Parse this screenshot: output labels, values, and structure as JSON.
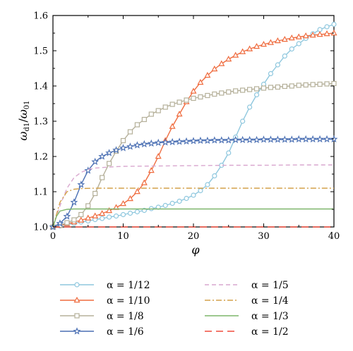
{
  "chart_data": {
    "type": "line",
    "xlabel": "φ",
    "ylabel_main": "ω",
    "ylabel_num_sub": "d1",
    "ylabel_den_sub": "01",
    "xlim": [
      0,
      40
    ],
    "ylim": [
      1.0,
      1.6
    ],
    "x_ticks": [
      "0",
      "10",
      "20",
      "30",
      "40"
    ],
    "y_ticks": [
      "1.0",
      "1.1",
      "1.2",
      "1.3",
      "1.4",
      "1.5",
      "1.6"
    ],
    "grid": false,
    "legend_position": "bottom",
    "series": [
      {
        "name": "α = 1/12",
        "color": "#8ec7de",
        "marker": "circle",
        "dash": "solid",
        "points": [
          [
            0,
            1.0
          ],
          [
            1,
            1.003
          ],
          [
            2,
            1.007
          ],
          [
            3,
            1.01
          ],
          [
            4,
            1.014
          ],
          [
            5,
            1.017
          ],
          [
            6,
            1.021
          ],
          [
            7,
            1.024
          ],
          [
            8,
            1.028
          ],
          [
            9,
            1.031
          ],
          [
            10,
            1.035
          ],
          [
            11,
            1.039
          ],
          [
            12,
            1.043
          ],
          [
            13,
            1.047
          ],
          [
            14,
            1.052
          ],
          [
            15,
            1.056
          ],
          [
            16,
            1.061
          ],
          [
            17,
            1.067
          ],
          [
            18,
            1.073
          ],
          [
            19,
            1.081
          ],
          [
            20,
            1.09
          ],
          [
            21,
            1.103
          ],
          [
            22,
            1.12
          ],
          [
            23,
            1.145
          ],
          [
            24,
            1.175
          ],
          [
            25,
            1.21
          ],
          [
            26,
            1.255
          ],
          [
            27,
            1.3
          ],
          [
            28,
            1.34
          ],
          [
            29,
            1.375
          ],
          [
            30,
            1.405
          ],
          [
            31,
            1.435
          ],
          [
            32,
            1.46
          ],
          [
            33,
            1.485
          ],
          [
            34,
            1.505
          ],
          [
            35,
            1.52
          ],
          [
            36,
            1.535
          ],
          [
            37,
            1.548
          ],
          [
            38,
            1.56
          ],
          [
            39,
            1.568
          ],
          [
            40,
            1.575
          ]
        ]
      },
      {
        "name": "α = 1/10",
        "color": "#ef6c3f",
        "marker": "triangle",
        "dash": "solid",
        "points": [
          [
            0,
            1.0
          ],
          [
            1,
            1.004
          ],
          [
            2,
            1.009
          ],
          [
            3,
            1.014
          ],
          [
            4,
            1.019
          ],
          [
            5,
            1.025
          ],
          [
            6,
            1.031
          ],
          [
            7,
            1.038
          ],
          [
            8,
            1.046
          ],
          [
            9,
            1.055
          ],
          [
            10,
            1.066
          ],
          [
            11,
            1.08
          ],
          [
            12,
            1.1
          ],
          [
            13,
            1.125
          ],
          [
            14,
            1.16
          ],
          [
            15,
            1.2
          ],
          [
            16,
            1.245
          ],
          [
            17,
            1.285
          ],
          [
            18,
            1.32
          ],
          [
            19,
            1.355
          ],
          [
            20,
            1.385
          ],
          [
            21,
            1.41
          ],
          [
            22,
            1.43
          ],
          [
            23,
            1.448
          ],
          [
            24,
            1.463
          ],
          [
            25,
            1.476
          ],
          [
            26,
            1.487
          ],
          [
            27,
            1.497
          ],
          [
            28,
            1.505
          ],
          [
            29,
            1.512
          ],
          [
            30,
            1.518
          ],
          [
            31,
            1.523
          ],
          [
            32,
            1.528
          ],
          [
            33,
            1.532
          ],
          [
            34,
            1.536
          ],
          [
            35,
            1.539
          ],
          [
            36,
            1.542
          ],
          [
            37,
            1.544
          ],
          [
            38,
            1.546
          ],
          [
            39,
            1.548
          ],
          [
            40,
            1.55
          ]
        ]
      },
      {
        "name": "α = 1/8",
        "color": "#b5b09a",
        "marker": "square",
        "dash": "solid",
        "points": [
          [
            0,
            1.0
          ],
          [
            1,
            1.005
          ],
          [
            2,
            1.012
          ],
          [
            3,
            1.02
          ],
          [
            4,
            1.035
          ],
          [
            5,
            1.06
          ],
          [
            6,
            1.095
          ],
          [
            7,
            1.14
          ],
          [
            8,
            1.18
          ],
          [
            9,
            1.215
          ],
          [
            10,
            1.245
          ],
          [
            11,
            1.27
          ],
          [
            12,
            1.29
          ],
          [
            13,
            1.305
          ],
          [
            14,
            1.32
          ],
          [
            15,
            1.33
          ],
          [
            16,
            1.34
          ],
          [
            17,
            1.348
          ],
          [
            18,
            1.354
          ],
          [
            19,
            1.36
          ],
          [
            20,
            1.365
          ],
          [
            21,
            1.369
          ],
          [
            22,
            1.373
          ],
          [
            23,
            1.377
          ],
          [
            24,
            1.38
          ],
          [
            25,
            1.383
          ],
          [
            26,
            1.386
          ],
          [
            27,
            1.388
          ],
          [
            28,
            1.39
          ],
          [
            29,
            1.392
          ],
          [
            30,
            1.394
          ],
          [
            31,
            1.396
          ],
          [
            32,
            1.397
          ],
          [
            33,
            1.399
          ],
          [
            34,
            1.4
          ],
          [
            35,
            1.402
          ],
          [
            36,
            1.403
          ],
          [
            37,
            1.404
          ],
          [
            38,
            1.405
          ],
          [
            39,
            1.406
          ],
          [
            40,
            1.407
          ]
        ]
      },
      {
        "name": "α = 1/6",
        "color": "#4a6fb3",
        "marker": "star",
        "dash": "solid",
        "points": [
          [
            0,
            1.0
          ],
          [
            1,
            1.01
          ],
          [
            2,
            1.03
          ],
          [
            3,
            1.07
          ],
          [
            4,
            1.12
          ],
          [
            5,
            1.16
          ],
          [
            6,
            1.185
          ],
          [
            7,
            1.2
          ],
          [
            8,
            1.21
          ],
          [
            9,
            1.218
          ],
          [
            10,
            1.224
          ],
          [
            11,
            1.228
          ],
          [
            12,
            1.232
          ],
          [
            13,
            1.235
          ],
          [
            14,
            1.237
          ],
          [
            15,
            1.239
          ],
          [
            16,
            1.24
          ],
          [
            17,
            1.241
          ],
          [
            18,
            1.242
          ],
          [
            19,
            1.243
          ],
          [
            20,
            1.244
          ],
          [
            21,
            1.245
          ],
          [
            22,
            1.245
          ],
          [
            23,
            1.246
          ],
          [
            24,
            1.246
          ],
          [
            25,
            1.246
          ],
          [
            26,
            1.247
          ],
          [
            27,
            1.247
          ],
          [
            28,
            1.247
          ],
          [
            29,
            1.247
          ],
          [
            30,
            1.248
          ],
          [
            31,
            1.248
          ],
          [
            32,
            1.248
          ],
          [
            33,
            1.248
          ],
          [
            34,
            1.248
          ],
          [
            35,
            1.249
          ],
          [
            36,
            1.249
          ],
          [
            37,
            1.249
          ],
          [
            38,
            1.249
          ],
          [
            39,
            1.249
          ],
          [
            40,
            1.249
          ]
        ]
      },
      {
        "name": "α = 1/5",
        "color": "#d9a7cf",
        "marker": "none",
        "dash": "dashed",
        "points": [
          [
            0,
            1.0
          ],
          [
            1,
            1.06
          ],
          [
            2,
            1.11
          ],
          [
            3,
            1.14
          ],
          [
            4,
            1.155
          ],
          [
            5,
            1.163
          ],
          [
            6,
            1.167
          ],
          [
            8,
            1.17
          ],
          [
            10,
            1.172
          ],
          [
            15,
            1.173
          ],
          [
            20,
            1.174
          ],
          [
            25,
            1.175
          ],
          [
            30,
            1.175
          ],
          [
            35,
            1.176
          ],
          [
            40,
            1.176
          ]
        ]
      },
      {
        "name": "α = 1/4",
        "color": "#d3a14a",
        "marker": "none",
        "dash": "dashdot",
        "points": [
          [
            0,
            1.0
          ],
          [
            1,
            1.07
          ],
          [
            2,
            1.1
          ],
          [
            3,
            1.107
          ],
          [
            4,
            1.109
          ],
          [
            6,
            1.11
          ],
          [
            10,
            1.11
          ],
          [
            20,
            1.11
          ],
          [
            30,
            1.11
          ],
          [
            40,
            1.11
          ]
        ]
      },
      {
        "name": "α = 1/3",
        "color": "#7db56a",
        "marker": "none",
        "dash": "solid",
        "points": [
          [
            0,
            1.0
          ],
          [
            0.5,
            1.03
          ],
          [
            1,
            1.045
          ],
          [
            2,
            1.05
          ],
          [
            3,
            1.051
          ],
          [
            5,
            1.051
          ],
          [
            10,
            1.051
          ],
          [
            20,
            1.051
          ],
          [
            30,
            1.051
          ],
          [
            40,
            1.051
          ]
        ]
      },
      {
        "name": "α = 1/2",
        "color": "#ef4b3b",
        "marker": "none",
        "dash": "longdash",
        "points": [
          [
            0,
            1.0
          ],
          [
            10,
            1.0
          ],
          [
            20,
            1.0
          ],
          [
            30,
            1.0
          ],
          [
            40,
            1.0
          ]
        ]
      }
    ]
  }
}
